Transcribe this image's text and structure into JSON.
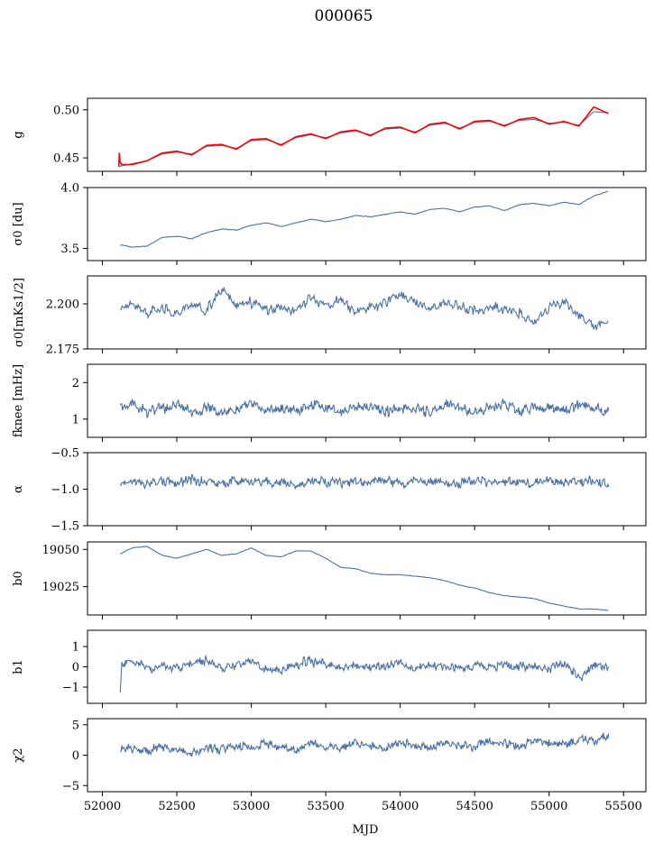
{
  "figure": {
    "title": "000065",
    "xlabel": "MJD"
  },
  "chart_data": [
    {
      "type": "line",
      "ylabel": "g",
      "xlim": [
        51900,
        55650
      ],
      "ylim": [
        0.436,
        0.512
      ],
      "yticks": [
        0.45,
        0.5
      ],
      "ytick_labels": [
        "0.45",
        "0.50"
      ],
      "xtick_labels_visible": false,
      "series": [
        {
          "color": "#4c72a4",
          "kind": "model",
          "x": [
            52110,
            52200,
            52300,
            52400,
            52500,
            52600,
            52700,
            52800,
            52900,
            53000,
            53100,
            53200,
            53300,
            53400,
            53500,
            53600,
            53700,
            53800,
            53900,
            54000,
            54100,
            54200,
            54300,
            54400,
            54500,
            54600,
            54700,
            54800,
            54900,
            55000,
            55100,
            55200,
            55300,
            55400
          ],
          "y": [
            0.441,
            0.444,
            0.447,
            0.454,
            0.456,
            0.454,
            0.462,
            0.463,
            0.46,
            0.468,
            0.469,
            0.464,
            0.471,
            0.474,
            0.471,
            0.476,
            0.478,
            0.474,
            0.48,
            0.481,
            0.477,
            0.484,
            0.486,
            0.481,
            0.487,
            0.488,
            0.484,
            0.489,
            0.49,
            0.486,
            0.487,
            0.484,
            0.498,
            0.497
          ]
        },
        {
          "color": "#ff0000",
          "kind": "data",
          "x": [
            52110,
            52112,
            52115,
            52130,
            52200,
            52300,
            52400,
            52500,
            52600,
            52700,
            52800,
            52900,
            53000,
            53100,
            53200,
            53300,
            53400,
            53500,
            53600,
            53700,
            53800,
            53900,
            54000,
            54100,
            54200,
            54300,
            54400,
            54500,
            54600,
            54700,
            54800,
            54900,
            55000,
            55100,
            55200,
            55300,
            55400
          ],
          "y": [
            0.441,
            0.472,
            0.447,
            0.443,
            0.443,
            0.447,
            0.455,
            0.457,
            0.453,
            0.463,
            0.464,
            0.459,
            0.469,
            0.47,
            0.463,
            0.472,
            0.475,
            0.47,
            0.477,
            0.479,
            0.473,
            0.481,
            0.482,
            0.476,
            0.485,
            0.487,
            0.48,
            0.488,
            0.489,
            0.483,
            0.49,
            0.492,
            0.485,
            0.488,
            0.483,
            0.503,
            0.496
          ]
        }
      ]
    },
    {
      "type": "line",
      "ylabel": "σ0 [du]",
      "xlim": [
        51900,
        55650
      ],
      "ylim": [
        3.4,
        4.0
      ],
      "yticks": [
        3.5,
        4.0
      ],
      "ytick_labels": [
        "3.5",
        "4.0"
      ],
      "xtick_labels_visible": false,
      "series": [
        {
          "color": "#4c72a4",
          "x": [
            52120,
            52200,
            52300,
            52400,
            52500,
            52600,
            52700,
            52800,
            52900,
            53000,
            53100,
            53200,
            53300,
            53400,
            53500,
            53600,
            53700,
            53800,
            53900,
            54000,
            54100,
            54200,
            54300,
            54400,
            54500,
            54600,
            54700,
            54800,
            54900,
            55000,
            55100,
            55200,
            55300,
            55400
          ],
          "y": [
            3.53,
            3.51,
            3.52,
            3.59,
            3.6,
            3.58,
            3.63,
            3.66,
            3.65,
            3.69,
            3.71,
            3.68,
            3.71,
            3.74,
            3.72,
            3.74,
            3.77,
            3.76,
            3.78,
            3.8,
            3.78,
            3.82,
            3.83,
            3.8,
            3.84,
            3.85,
            3.81,
            3.86,
            3.87,
            3.85,
            3.88,
            3.86,
            3.93,
            3.97
          ]
        }
      ]
    },
    {
      "type": "line",
      "ylabel": "σ0[mKs1/2]",
      "xlim": [
        51900,
        55650
      ],
      "ylim": [
        2.175,
        2.2155
      ],
      "yticks": [
        2.175,
        2.2
      ],
      "ytick_labels": [
        "2.175",
        "2.200"
      ],
      "xtick_labels_visible": false,
      "series": [
        {
          "color": "#4c72a4",
          "x": [
            52120,
            52200,
            52300,
            52400,
            52500,
            52600,
            52700,
            52800,
            52900,
            53000,
            53100,
            53200,
            53300,
            53400,
            53500,
            53600,
            53700,
            53800,
            53900,
            54000,
            54100,
            54200,
            54300,
            54400,
            54500,
            54600,
            54700,
            54800,
            54900,
            55000,
            55100,
            55200,
            55300,
            55400
          ],
          "y": [
            2.197,
            2.201,
            2.195,
            2.198,
            2.194,
            2.199,
            2.197,
            2.208,
            2.199,
            2.201,
            2.196,
            2.198,
            2.196,
            2.203,
            2.199,
            2.202,
            2.196,
            2.198,
            2.2,
            2.207,
            2.201,
            2.198,
            2.2,
            2.199,
            2.196,
            2.198,
            2.197,
            2.195,
            2.189,
            2.198,
            2.201,
            2.194,
            2.187,
            2.19
          ]
        }
      ]
    },
    {
      "type": "line",
      "ylabel": "fknee [mHz]",
      "xlim": [
        51900,
        55650
      ],
      "ylim": [
        0.5,
        2.5
      ],
      "yticks": [
        1,
        2
      ],
      "ytick_labels": [
        "1",
        "2"
      ],
      "xtick_labels_visible": false,
      "series": [
        {
          "color": "#4c72a4",
          "x": [
            52120,
            52200,
            52300,
            52400,
            52500,
            52600,
            52700,
            52800,
            52900,
            53000,
            53100,
            53200,
            53300,
            53400,
            53500,
            53600,
            53700,
            53800,
            53900,
            54000,
            54100,
            54200,
            54300,
            54400,
            54500,
            54600,
            54700,
            54800,
            54900,
            55000,
            55100,
            55200,
            55300,
            55400
          ],
          "y": [
            1.3,
            1.4,
            1.2,
            1.3,
            1.4,
            1.2,
            1.3,
            1.2,
            1.3,
            1.4,
            1.2,
            1.3,
            1.2,
            1.4,
            1.3,
            1.2,
            1.3,
            1.4,
            1.2,
            1.3,
            1.3,
            1.2,
            1.4,
            1.3,
            1.2,
            1.3,
            1.4,
            1.2,
            1.3,
            1.3,
            1.2,
            1.4,
            1.3,
            1.2
          ]
        }
      ]
    },
    {
      "type": "line",
      "ylabel": "α",
      "xlim": [
        51900,
        55650
      ],
      "ylim": [
        -1.5,
        -0.5
      ],
      "yticks": [
        -1.5,
        -1.0,
        -0.5
      ],
      "ytick_labels": [
        "−1.5",
        "−1.0",
        "−0.5"
      ],
      "xtick_labels_visible": false,
      "series": [
        {
          "color": "#4c72a4",
          "x": [
            52120,
            52200,
            52300,
            52400,
            52500,
            52600,
            52700,
            52800,
            52900,
            53000,
            53100,
            53200,
            53300,
            53400,
            53500,
            53600,
            53700,
            53800,
            53900,
            54000,
            54100,
            54200,
            54300,
            54400,
            54500,
            54600,
            54700,
            54800,
            54900,
            55000,
            55100,
            55200,
            55300,
            55400
          ],
          "y": [
            -0.92,
            -0.88,
            -0.93,
            -0.89,
            -0.91,
            -0.87,
            -0.9,
            -0.92,
            -0.88,
            -0.9,
            -0.91,
            -0.89,
            -0.93,
            -0.88,
            -0.9,
            -0.92,
            -0.89,
            -0.91,
            -0.88,
            -0.92,
            -0.9,
            -0.89,
            -0.91,
            -0.93,
            -0.88,
            -0.9,
            -0.91,
            -0.89,
            -0.92,
            -0.88,
            -0.9,
            -0.91,
            -0.89,
            -0.92
          ]
        }
      ]
    },
    {
      "type": "line",
      "ylabel": "b0",
      "xlim": [
        51900,
        55650
      ],
      "ylim": [
        19006,
        19055
      ],
      "yticks": [
        19025,
        19050
      ],
      "ytick_labels": [
        "19025",
        "19050"
      ],
      "xtick_labels_visible": false,
      "series": [
        {
          "color": "#4c72a4",
          "x": [
            52120,
            52200,
            52300,
            52400,
            52500,
            52600,
            52700,
            52800,
            52900,
            53000,
            53100,
            53200,
            53300,
            53400,
            53500,
            53600,
            53700,
            53800,
            53900,
            54000,
            54100,
            54200,
            54300,
            54400,
            54500,
            54600,
            54700,
            54800,
            54900,
            55000,
            55100,
            55200,
            55300,
            55400
          ],
          "y": [
            19047,
            19051,
            19052,
            19046,
            19044,
            19047,
            19050,
            19046,
            19047,
            19051,
            19046,
            19045,
            19049,
            19049,
            19044,
            19038,
            19037,
            19034,
            19033,
            19033,
            19032,
            19031,
            19029,
            19026,
            19024,
            19021,
            19019,
            19018,
            19017,
            19014,
            19012,
            19010,
            19010,
            19009
          ]
        }
      ]
    },
    {
      "type": "line",
      "ylabel": "b1",
      "xlim": [
        51900,
        55650
      ],
      "ylim": [
        -1.8,
        1.8
      ],
      "yticks": [
        -1,
        0,
        1
      ],
      "ytick_labels": [
        "−1",
        "0",
        "1"
      ],
      "xtick_labels_visible": false,
      "series": [
        {
          "color": "#4c72a4",
          "x": [
            52120,
            52130,
            52200,
            52300,
            52400,
            52500,
            52600,
            52700,
            52800,
            52900,
            53000,
            53100,
            53200,
            53300,
            53400,
            53500,
            53600,
            53700,
            53800,
            53900,
            54000,
            54100,
            54200,
            54300,
            54400,
            54500,
            54600,
            54700,
            54800,
            54900,
            55000,
            55100,
            55200,
            55300,
            55400
          ],
          "y": [
            -1.3,
            0.1,
            0.3,
            -0.1,
            0.1,
            -0.1,
            0.2,
            0.3,
            -0.1,
            0.1,
            0.4,
            -0.1,
            -0.2,
            0.1,
            0.3,
            0.1,
            0.0,
            0.1,
            0.0,
            0.1,
            0.2,
            0.0,
            0.1,
            0.0,
            0.0,
            0.1,
            0.0,
            0.1,
            0.0,
            0.0,
            -0.1,
            0.2,
            -0.6,
            0.1,
            0.0
          ]
        }
      ]
    },
    {
      "type": "line",
      "ylabel": "χ2",
      "xlim": [
        51900,
        55650
      ],
      "ylim": [
        -6,
        6
      ],
      "yticks": [
        -5,
        0,
        5
      ],
      "ytick_labels": [
        "−5",
        "0",
        "5"
      ],
      "xticks": [
        52000,
        52500,
        53000,
        53500,
        54000,
        54500,
        55000,
        55500
      ],
      "xtick_labels": [
        "52000",
        "52500",
        "53000",
        "53500",
        "54000",
        "54500",
        "55000",
        "55500"
      ],
      "xtick_labels_visible": true,
      "series": [
        {
          "color": "#4c72a4",
          "x": [
            52120,
            52200,
            52300,
            52400,
            52500,
            52600,
            52700,
            52800,
            52900,
            53000,
            53100,
            53200,
            53300,
            53400,
            53500,
            53600,
            53700,
            53800,
            53900,
            54000,
            54100,
            54200,
            54300,
            54400,
            54500,
            54600,
            54700,
            54800,
            54900,
            55000,
            55100,
            55200,
            55300,
            55400
          ],
          "y": [
            0.8,
            1.2,
            0.6,
            1.5,
            1.0,
            0.4,
            1.3,
            0.8,
            1.6,
            1.1,
            1.9,
            1.4,
            1.0,
            2.0,
            1.5,
            1.2,
            1.9,
            1.6,
            1.0,
            2.1,
            1.7,
            1.3,
            2.0,
            1.8,
            1.4,
            2.2,
            1.9,
            1.5,
            2.4,
            2.0,
            1.8,
            2.6,
            2.2,
            3.2
          ]
        }
      ]
    }
  ]
}
